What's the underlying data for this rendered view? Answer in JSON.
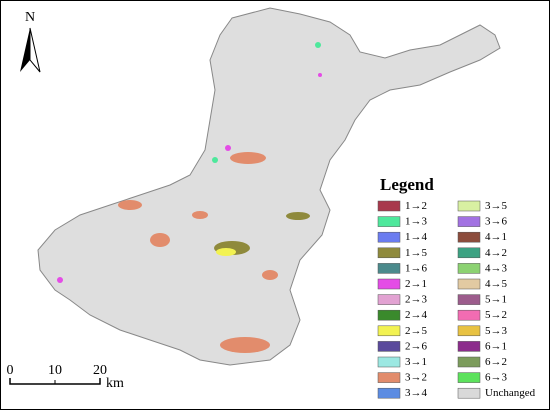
{
  "north_arrow": {
    "label": "N"
  },
  "legend": {
    "title": "Legend",
    "items": [
      {
        "label": "1→2",
        "color": "#a8394c"
      },
      {
        "label": "1→3",
        "color": "#4ee89c"
      },
      {
        "label": "1→4",
        "color": "#6b7cf0"
      },
      {
        "label": "1→5",
        "color": "#8f8a3c"
      },
      {
        "label": "1→6",
        "color": "#4b8a8c"
      },
      {
        "label": "2→1",
        "color": "#e44ce6"
      },
      {
        "label": "2→3",
        "color": "#e2a2d2"
      },
      {
        "label": "2→4",
        "color": "#3a8a2c"
      },
      {
        "label": "2→5",
        "color": "#f2f252"
      },
      {
        "label": "2→6",
        "color": "#5a4a9c"
      },
      {
        "label": "3→1",
        "color": "#9ce8e2"
      },
      {
        "label": "3→2",
        "color": "#e28c6c"
      },
      {
        "label": "3→4",
        "color": "#5c8ce2"
      },
      {
        "label": "3→5",
        "color": "#d8f0a2"
      },
      {
        "label": "3→6",
        "color": "#a272e2"
      },
      {
        "label": "4→1",
        "color": "#8c4c3c"
      },
      {
        "label": "4→2",
        "color": "#3ca282"
      },
      {
        "label": "4→3",
        "color": "#8cd272"
      },
      {
        "label": "4→5",
        "color": "#e2caa2"
      },
      {
        "label": "5→1",
        "color": "#9c5c8c"
      },
      {
        "label": "5→2",
        "color": "#f26cb2"
      },
      {
        "label": "5→3",
        "color": "#e8c242"
      },
      {
        "label": "6→1",
        "color": "#8c2c8c"
      },
      {
        "label": "6→2",
        "color": "#7c9c5c"
      },
      {
        "label": "6→3",
        "color": "#5ce25c"
      },
      {
        "label": "Unchanged",
        "color": "#d9d9d9"
      }
    ]
  },
  "scale_bar": {
    "labels": [
      "0",
      "10",
      "20"
    ],
    "unit": "km"
  }
}
